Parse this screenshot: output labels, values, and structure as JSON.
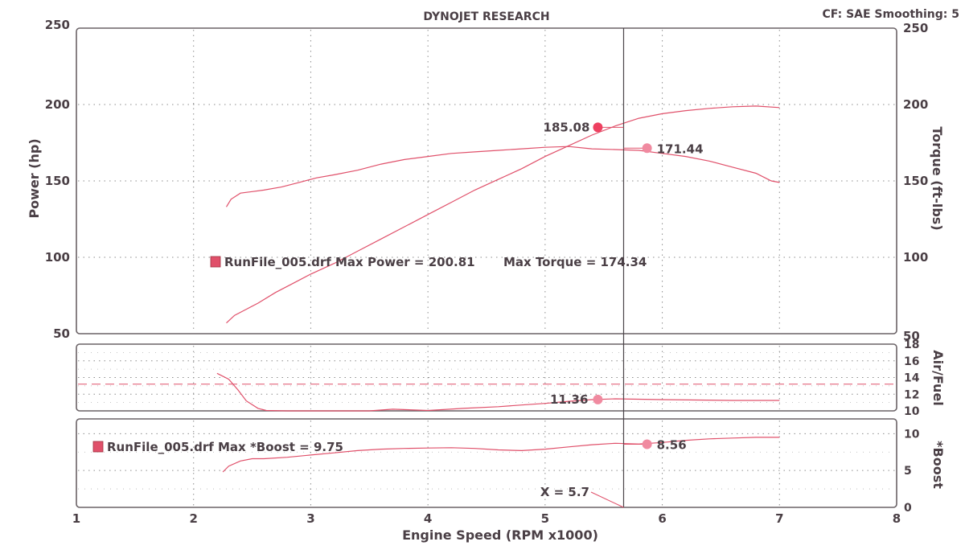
{
  "header": {
    "title": "DYNOJET RESEARCH",
    "correction": "CF: SAE  Smoothing: 5"
  },
  "colors": {
    "trace": "#e0506a",
    "marker_power": "#ee4060",
    "marker_other": "#f08aa0",
    "frame": "#6a6266",
    "grid": "#8c8c8c",
    "text": "#4a3f45"
  },
  "chart_data": [
    {
      "type": "line",
      "name": "power-torque",
      "ylabel": "Power (hp)",
      "y2label": "Torque (ft-lbs)",
      "xlim": [
        1,
        8
      ],
      "ylim": [
        50,
        250
      ],
      "y2lim": [
        50,
        250
      ],
      "yticks": [
        50,
        100,
        150,
        200,
        250
      ],
      "y2ticks": [
        50,
        100,
        150,
        200,
        250
      ],
      "grid": true,
      "series": [
        {
          "axis": "left",
          "x": [
            2.28,
            2.35,
            2.45,
            2.55,
            2.7,
            2.85,
            3.0,
            3.2,
            3.4,
            3.6,
            3.8,
            4.0,
            4.2,
            4.4,
            4.6,
            4.8,
            5.0,
            5.2,
            5.4,
            5.6,
            5.8,
            6.0,
            6.2,
            6.4,
            6.6,
            6.8,
            7.0
          ],
          "y": [
            57,
            62,
            66,
            70,
            77,
            83,
            89,
            96,
            104,
            112,
            120,
            128,
            136,
            144,
            151,
            158,
            166,
            173,
            180,
            186,
            191,
            194,
            196,
            197.5,
            198.5,
            199,
            198
          ]
        },
        {
          "axis": "right",
          "x": [
            2.28,
            2.32,
            2.4,
            2.5,
            2.6,
            2.75,
            2.9,
            3.05,
            3.2,
            3.4,
            3.6,
            3.8,
            4.0,
            4.2,
            4.4,
            4.6,
            4.8,
            5.0,
            5.2,
            5.4,
            5.6,
            5.8,
            6.0,
            6.2,
            6.4,
            6.6,
            6.8,
            6.93,
            7.0
          ],
          "y": [
            133,
            138,
            142,
            143,
            144,
            146,
            149,
            152,
            154,
            157,
            161,
            164,
            166,
            168,
            169,
            170,
            171,
            172,
            172.5,
            171,
            170.5,
            170,
            168,
            166,
            163,
            159,
            155,
            150,
            149
          ]
        }
      ],
      "markers": [
        {
          "x": 5.45,
          "y": 185.08,
          "label": "185.08",
          "color": "power"
        },
        {
          "x": 5.87,
          "y": 171.44,
          "label": "171.44",
          "color": "other"
        }
      ],
      "summary": {
        "run_file": "RunFile_005.drf",
        "max_power_text": "RunFile_005.drf Max Power = 200.81",
        "max_torque_text": "Max Torque = 174.34",
        "max_power": 200.81,
        "max_torque": 174.34
      }
    },
    {
      "type": "line",
      "name": "air-fuel",
      "ylabel": "Air/Fuel",
      "xlim": [
        1,
        8
      ],
      "ylim": [
        10,
        18
      ],
      "yticks": [
        10,
        12,
        14,
        16,
        18
      ],
      "grid": true,
      "reference_line": 13.2,
      "series": [
        {
          "axis": "right",
          "x": [
            2.2,
            2.3,
            2.38,
            2.45,
            2.55,
            2.62,
            2.8,
            3.0,
            3.5,
            3.7,
            4.0,
            4.3,
            4.6,
            4.8,
            5.0,
            5.2,
            5.4,
            5.6,
            5.8,
            6.0,
            6.3,
            6.6,
            6.9,
            7.0
          ],
          "y": [
            14.5,
            13.8,
            12.5,
            11.2,
            10.3,
            10.05,
            10.0,
            10.0,
            10.0,
            10.2,
            10.05,
            10.3,
            10.5,
            10.7,
            10.9,
            11.15,
            11.35,
            11.45,
            11.4,
            11.35,
            11.3,
            11.25,
            11.25,
            11.25
          ]
        }
      ],
      "markers": [
        {
          "x": 5.45,
          "y": 11.36,
          "label": "11.36",
          "color": "other"
        }
      ]
    },
    {
      "type": "line",
      "name": "boost",
      "ylabel": "*Boost",
      "xlabel": "Engine Speed (RPM x1000)",
      "xlim": [
        1,
        8
      ],
      "xticks": [
        1,
        2,
        3,
        4,
        5,
        6,
        7,
        8
      ],
      "ylim": [
        0,
        12
      ],
      "yticks": [
        0,
        5,
        10
      ],
      "grid": true,
      "series": [
        {
          "axis": "right",
          "x": [
            2.25,
            2.3,
            2.4,
            2.5,
            2.6,
            2.8,
            3.0,
            3.2,
            3.4,
            3.6,
            3.8,
            4.0,
            4.2,
            4.4,
            4.6,
            4.8,
            5.0,
            5.2,
            5.4,
            5.6,
            5.8,
            6.0,
            6.2,
            6.4,
            6.6,
            6.8,
            7.0
          ],
          "y": [
            4.8,
            5.6,
            6.3,
            6.6,
            6.6,
            6.8,
            7.1,
            7.4,
            7.7,
            7.9,
            8.0,
            8.05,
            8.1,
            8.0,
            7.8,
            7.7,
            7.9,
            8.2,
            8.5,
            8.7,
            8.6,
            8.8,
            9.1,
            9.3,
            9.4,
            9.5,
            9.5
          ]
        }
      ],
      "markers": [
        {
          "x": 5.87,
          "y": 8.56,
          "label": "8.56",
          "color": "other"
        }
      ],
      "summary": {
        "max_boost_text": "RunFile_005.drf Max *Boost = 9.75",
        "max_boost": 9.75
      },
      "cursor": {
        "x": 5.67,
        "label": "X = 5.7"
      }
    }
  ]
}
